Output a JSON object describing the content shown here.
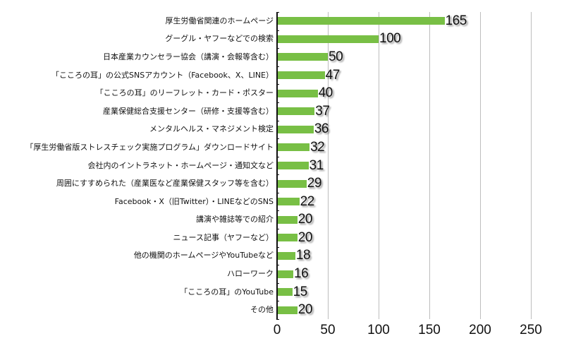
{
  "chart_data": {
    "type": "bar",
    "orientation": "horizontal",
    "title": "",
    "xlabel": "",
    "ylabel": "",
    "xlim": [
      0,
      250
    ],
    "xticks": [
      0,
      50,
      100,
      150,
      200,
      250
    ],
    "grid": "vertical",
    "legend": null,
    "bar_color": "#78bf45",
    "categories": [
      "厚生労働省関連のホームページ",
      "グーグル・ヤフーなどでの検索",
      "日本産業カウンセラー協会（講演・会報等含む）",
      "「こころの耳」の公式SNSアカウント（Facebook、X、LINE）",
      "「こころの耳」のリーフレット・カード・ポスター",
      "産業保健総合支援センター（研修・支援等含む）",
      "メンタルヘルス・マネジメント検定",
      "「厚生労働省版ストレスチェック実施プログラム」ダウンロードサイト",
      "会社内のイントラネット・ホームページ・通知文など",
      "周囲にすすめられた（産業医など産業保健スタッフ等を含む）",
      "Facebook・X（旧Twitter）・LINEなどのSNS",
      "講演や雑誌等での紹介",
      "ニュース記事（ヤフーなど）",
      "他の機関のホームページやYouTubeなど",
      "ハローワーク",
      "「こころの耳」のYouTube",
      "その他"
    ],
    "values": [
      165,
      100,
      50,
      47,
      40,
      37,
      36,
      32,
      31,
      29,
      22,
      20,
      20,
      18,
      16,
      15,
      20
    ]
  }
}
